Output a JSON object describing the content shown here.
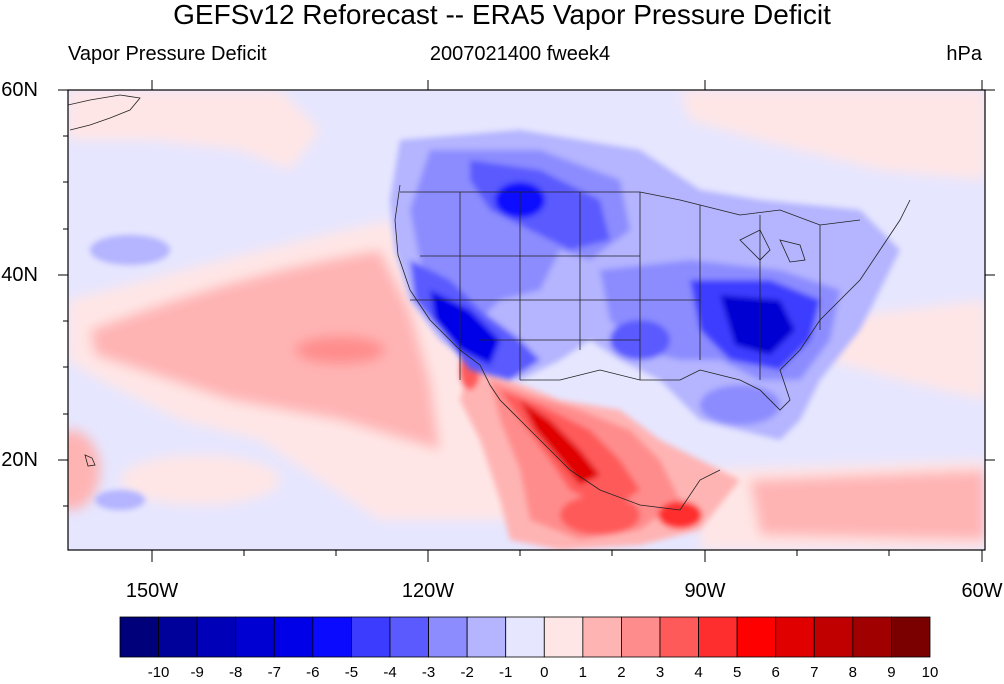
{
  "title": "GEFSv12 Reforecast -- ERA5 Vapor Pressure Deficit",
  "subtitle_left": "Vapor Pressure Deficit",
  "subtitle_center": "2007021400 fweek4",
  "units": "hPa",
  "lat_labels": [
    "60N",
    "40N",
    "20N"
  ],
  "lon_labels": [
    "150W",
    "120W",
    "90W",
    "60W"
  ],
  "colorbar": {
    "labels": [
      "-10",
      "-9",
      "-8",
      "-7",
      "-6",
      "-5",
      "-4",
      "-3",
      "-2",
      "-1",
      "0",
      "1",
      "2",
      "3",
      "4",
      "5",
      "6",
      "7",
      "8",
      "9",
      "10"
    ],
    "colors": [
      "#00007a",
      "#00009a",
      "#0000b8",
      "#0000d2",
      "#0000e8",
      "#0a0aff",
      "#3c3cff",
      "#5a5aff",
      "#8c8cff",
      "#b4b4ff",
      "#e6e6ff",
      "#ffe6e6",
      "#ffb4b4",
      "#ff8c8c",
      "#ff5a5a",
      "#ff2e2e",
      "#ff0000",
      "#e00000",
      "#c00000",
      "#a00000",
      "#7a0000"
    ]
  },
  "map": {
    "lat_range": [
      10,
      60
    ],
    "lon_range": [
      -160,
      -60
    ]
  }
}
